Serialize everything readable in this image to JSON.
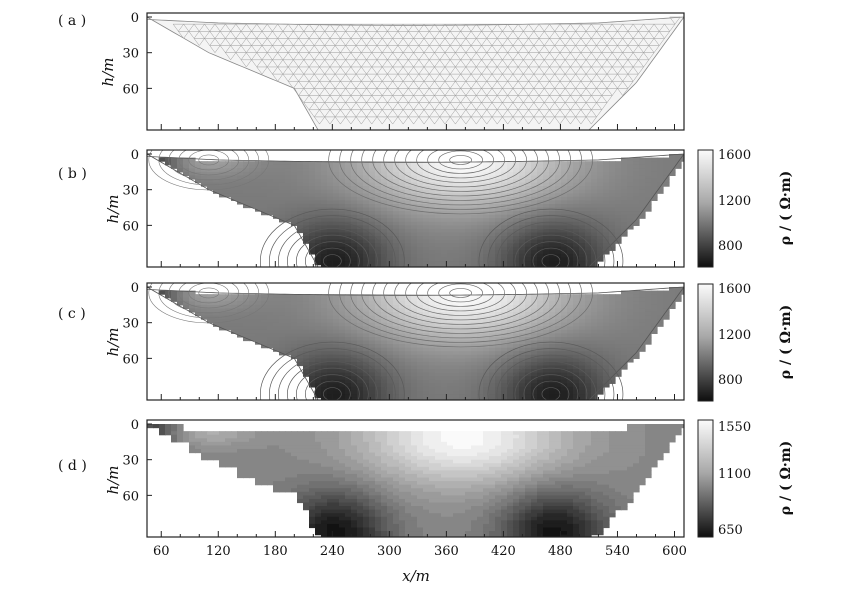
{
  "chart_data": [
    {
      "type": "mesh",
      "panel_label": "( a )",
      "ylabel": "h/m",
      "y_ticks": [
        0,
        30,
        60
      ],
      "ylim": [
        0,
        95
      ],
      "x_ticks_shown": false,
      "colorbar": null
    },
    {
      "type": "contour",
      "panel_label": "( b )",
      "ylabel": "h/m",
      "y_ticks": [
        0,
        30,
        60
      ],
      "ylim": [
        0,
        95
      ],
      "colorbar": {
        "ticks": [
          "1600",
          "1200",
          "800"
        ],
        "label": "ρ / ( Ω·m)",
        "range": [
          650,
          1650
        ]
      },
      "peaks": [
        {
          "x": 375,
          "h": 5,
          "rho": 1650
        }
      ],
      "minima": [
        {
          "x": 240,
          "h": 90,
          "rho": 700
        },
        {
          "x": 470,
          "h": 90,
          "rho": 700
        }
      ]
    },
    {
      "type": "contour",
      "panel_label": "( c )",
      "ylabel": "h/m",
      "y_ticks": [
        0,
        30,
        60
      ],
      "ylim": [
        0,
        95
      ],
      "colorbar": {
        "ticks": [
          "1600",
          "1200",
          "800"
        ],
        "label": "ρ / ( Ω·m)",
        "range": [
          650,
          1650
        ]
      },
      "peaks": [
        {
          "x": 375,
          "h": 5,
          "rho": 1650
        }
      ],
      "minima": [
        {
          "x": 240,
          "h": 90,
          "rho": 700
        },
        {
          "x": 470,
          "h": 90,
          "rho": 700
        }
      ]
    },
    {
      "type": "filled-contour",
      "panel_label": "( d )",
      "ylabel": "h/m",
      "y_ticks": [
        0,
        30,
        60
      ],
      "ylim": [
        0,
        95
      ],
      "xlabel": "x/m",
      "x_ticks": [
        60,
        120,
        180,
        240,
        300,
        360,
        420,
        480,
        540,
        600
      ],
      "xlim": [
        45,
        610
      ],
      "colorbar": {
        "ticks": [
          "1550",
          "1100",
          "650"
        ],
        "label": "ρ / ( Ω·m)",
        "range": [
          650,
          1550
        ]
      },
      "peaks": [
        {
          "x": 375,
          "h": 10,
          "rho": 1550
        }
      ],
      "minima": [
        {
          "x": 240,
          "h": 90,
          "rho": 650
        },
        {
          "x": 470,
          "h": 90,
          "rho": 650
        }
      ]
    }
  ],
  "section_profile": {
    "x": [
      45,
      110,
      200,
      225,
      510,
      560,
      610
    ],
    "bottom_h": [
      0,
      30,
      60,
      95,
      95,
      55,
      0
    ]
  }
}
